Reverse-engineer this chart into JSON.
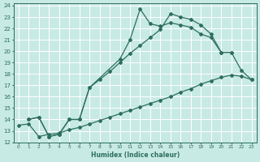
{
  "xlabel": "Humidex (Indice chaleur)",
  "bg_color": "#c8eae4",
  "grid_color": "#ffffff",
  "line_color": "#2d6e5e",
  "xlim": [
    -0.5,
    23.5
  ],
  "ylim": [
    12,
    24.2
  ],
  "xticks": [
    0,
    1,
    2,
    3,
    4,
    5,
    6,
    7,
    8,
    9,
    10,
    11,
    12,
    13,
    14,
    15,
    16,
    17,
    18,
    19,
    20,
    21,
    22,
    23
  ],
  "yticks": [
    12,
    13,
    14,
    15,
    16,
    17,
    18,
    19,
    20,
    21,
    22,
    23,
    24
  ],
  "line1_x": [
    1,
    2,
    3,
    4,
    5,
    6,
    7,
    10,
    11,
    12,
    13,
    14,
    15,
    16,
    17,
    18,
    19,
    20,
    21
  ],
  "line1_y": [
    14.0,
    14.2,
    12.5,
    12.7,
    14.0,
    14.0,
    16.8,
    19.3,
    21.0,
    23.7,
    22.4,
    22.2,
    22.5,
    22.3,
    22.1,
    21.5,
    21.2,
    19.9,
    19.9
  ],
  "line2_x": [
    1,
    2,
    3,
    4,
    5,
    6,
    7,
    8,
    9,
    10,
    11,
    12,
    13,
    14,
    15,
    16,
    17,
    18,
    19,
    20,
    21,
    22,
    23
  ],
  "line2_y": [
    14.0,
    14.2,
    12.5,
    12.7,
    14.0,
    14.0,
    16.8,
    17.5,
    18.2,
    19.0,
    19.8,
    20.5,
    21.2,
    21.9,
    23.3,
    23.0,
    22.8,
    22.3,
    21.5,
    19.9,
    19.9,
    18.3,
    17.5
  ],
  "line3_x": [
    0,
    1,
    2,
    3,
    4,
    5,
    6,
    7,
    8,
    9,
    10,
    11,
    12,
    13,
    14,
    15,
    16,
    17,
    18,
    19,
    20,
    21,
    22,
    23
  ],
  "line3_y": [
    13.5,
    13.6,
    12.5,
    12.7,
    12.8,
    13.1,
    13.3,
    13.6,
    13.9,
    14.2,
    14.5,
    14.8,
    15.1,
    15.4,
    15.7,
    16.0,
    16.4,
    16.7,
    17.1,
    17.4,
    17.7,
    17.9,
    17.8,
    17.5
  ]
}
